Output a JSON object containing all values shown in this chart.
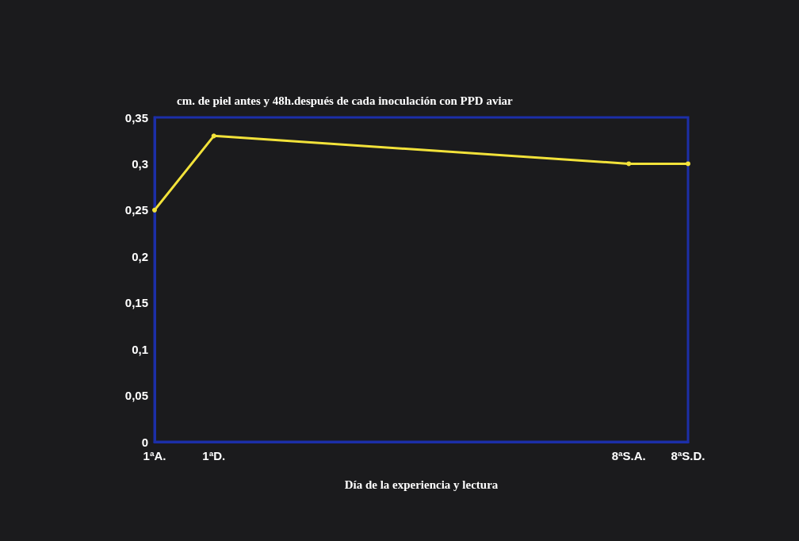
{
  "chart_data": {
    "type": "line",
    "title": "cm. de piel antes y 48h.después de cada inoculación con PPD aviar",
    "xlabel": "Día de la experiencia y lectura",
    "categories": [
      "1ªA.",
      "1ªD.",
      null,
      null,
      null,
      null,
      null,
      null,
      "8ªS.A.",
      "8ªS.D."
    ],
    "series": [
      {
        "color": "#f2e23a",
        "x": [
          "1ªA.",
          "1ªD.",
          "8ªS.A.",
          "8ªS.D."
        ],
        "values": [
          0.25,
          0.33,
          0.3,
          0.3
        ]
      }
    ],
    "ylim": [
      0,
      0.35
    ],
    "yticks": [
      {
        "value": 0,
        "label": "0"
      },
      {
        "value": 0.05,
        "label": "0,05"
      },
      {
        "value": 0.1,
        "label": "0,1"
      },
      {
        "value": 0.15,
        "label": "0,15"
      },
      {
        "value": 0.2,
        "label": "0,2"
      },
      {
        "value": 0.25,
        "label": "0,25"
      },
      {
        "value": 0.3,
        "label": "0,3"
      },
      {
        "value": 0.35,
        "label": "0,35"
      }
    ],
    "grid": false,
    "marker": "circle",
    "line_style": "solid"
  }
}
